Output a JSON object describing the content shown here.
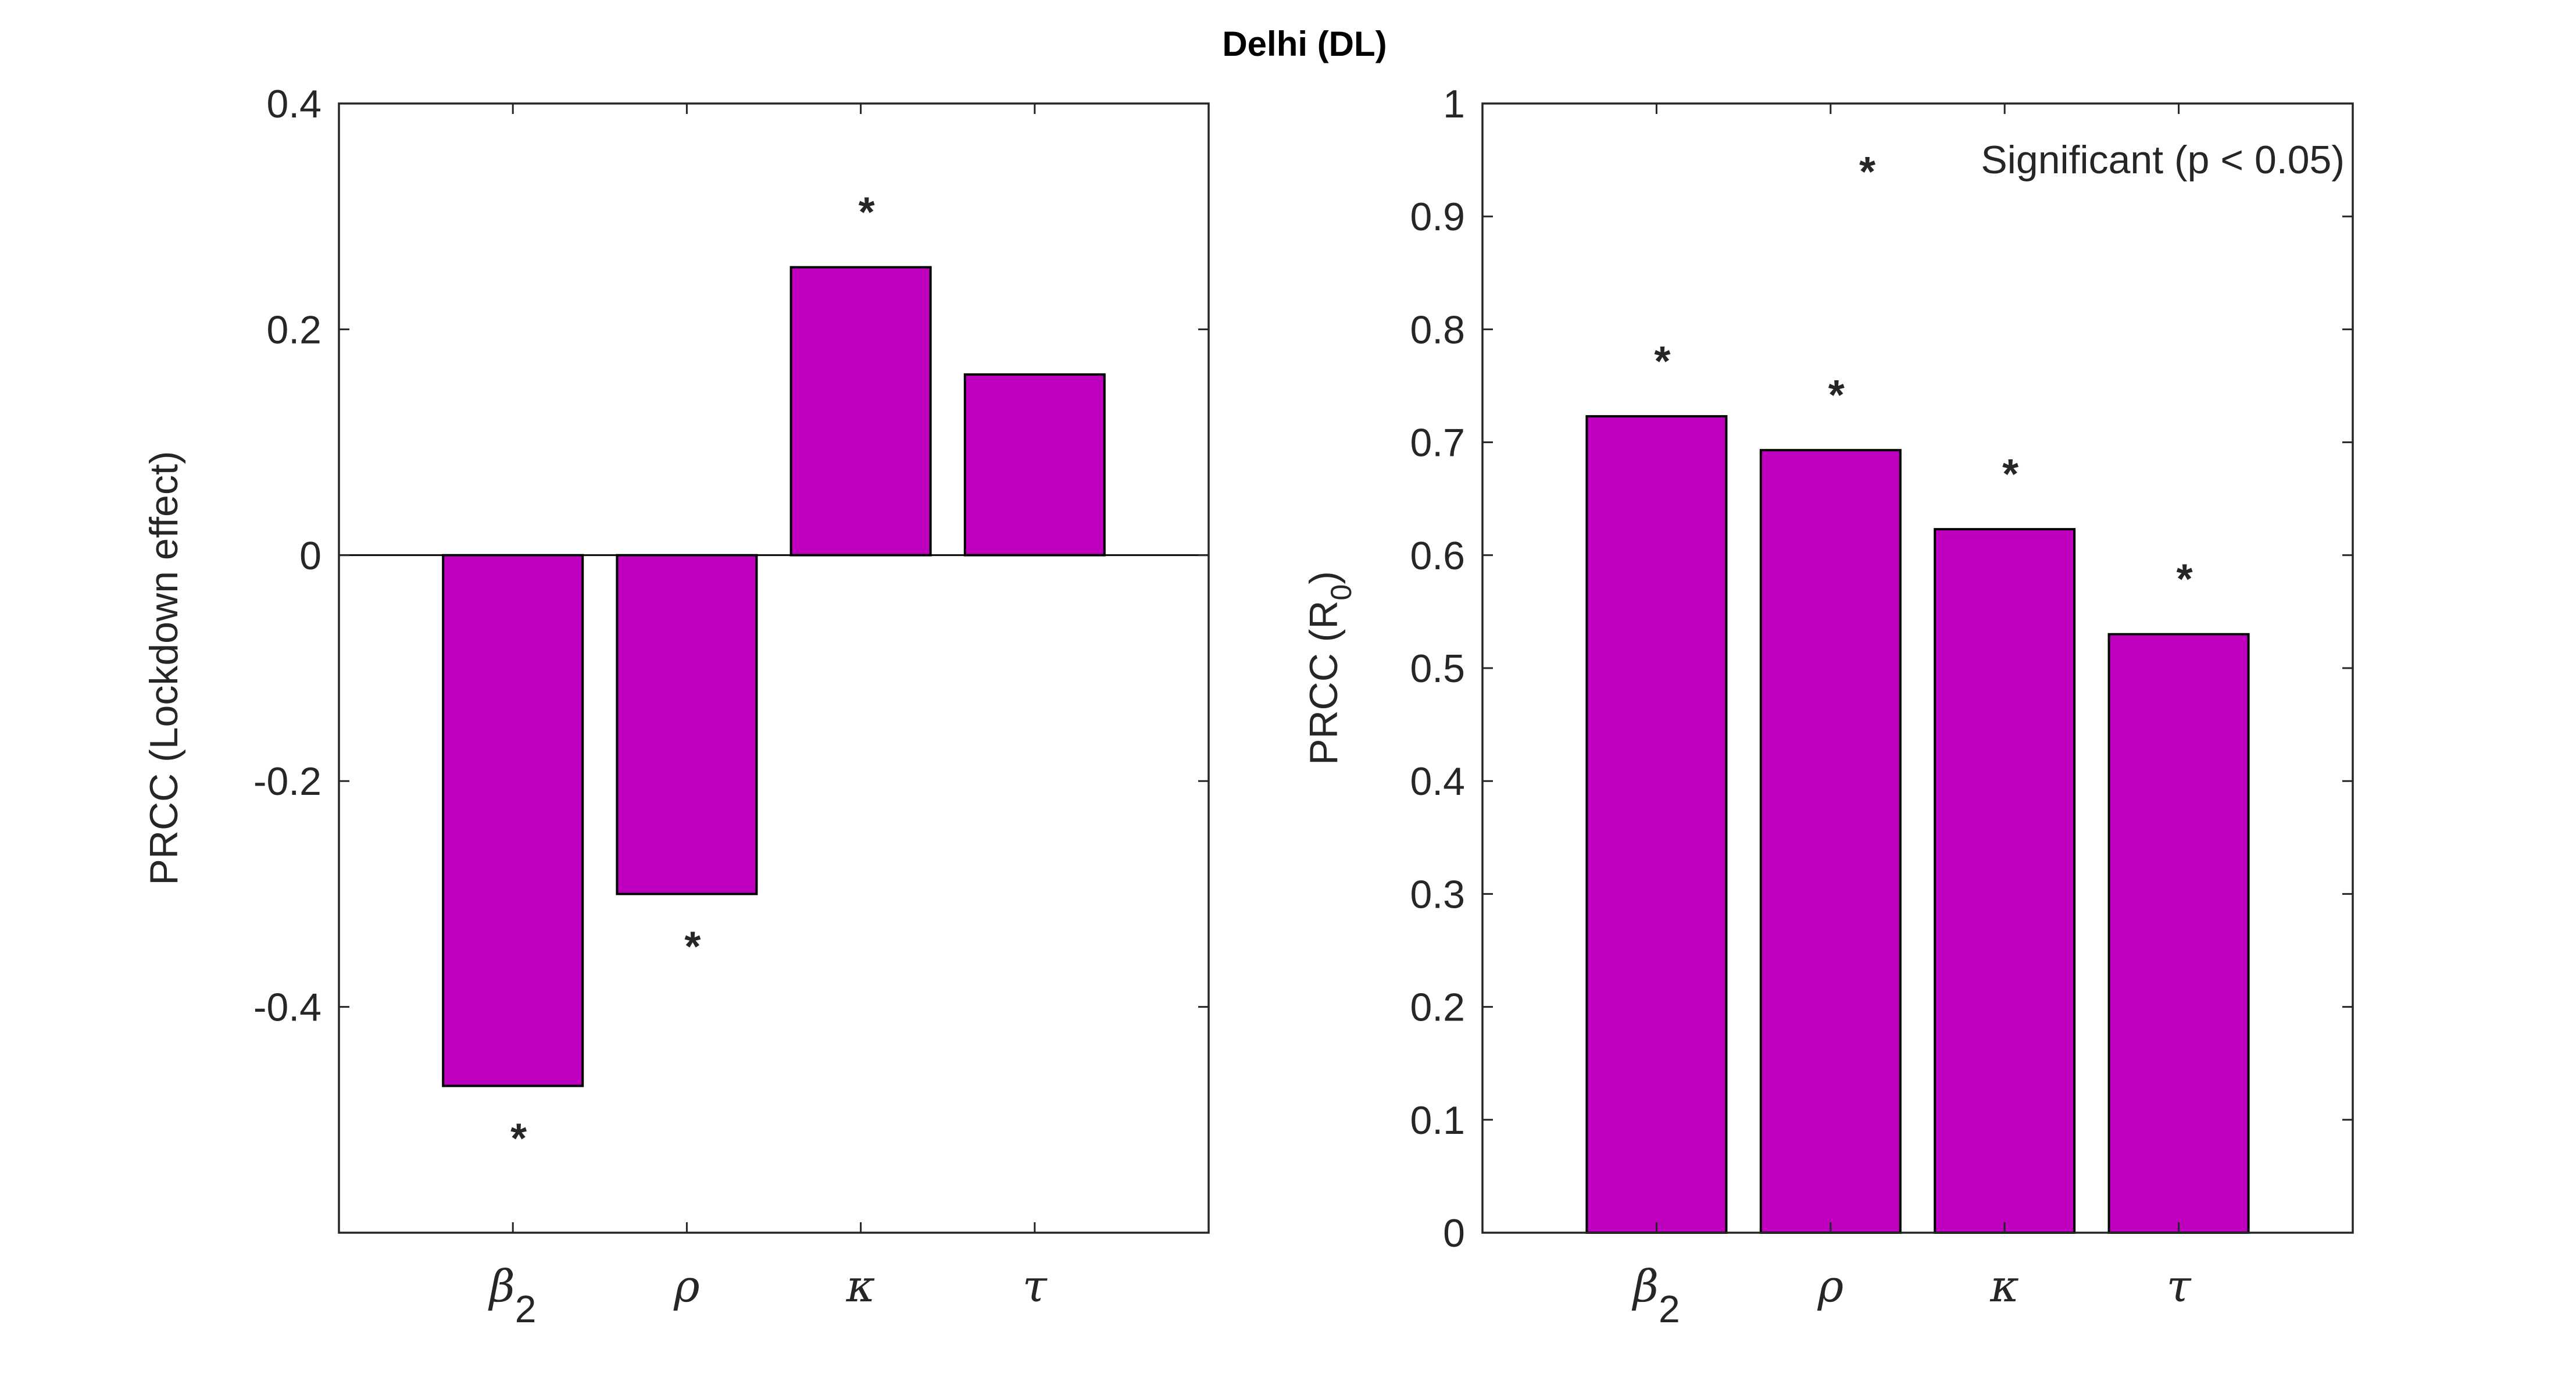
{
  "figure_title": "Delhi (DL)",
  "colors": {
    "bar": "#BF00BF",
    "edge": "#000000",
    "axis": "#262626"
  },
  "chart_data": [
    {
      "type": "bar",
      "title": "",
      "xlabel": "",
      "ylabel": "PRCC (Lockdown effect)",
      "categories": [
        {
          "symbol": "β",
          "subscript": "2"
        },
        {
          "symbol": "ρ",
          "subscript": ""
        },
        {
          "symbol": "κ",
          "subscript": ""
        },
        {
          "symbol": "τ",
          "subscript": ""
        }
      ],
      "values": [
        -0.47,
        -0.3,
        0.255,
        0.16
      ],
      "significant": [
        true,
        true,
        true,
        false
      ],
      "significance_marker": "*",
      "ylim": [
        -0.6,
        0.4
      ],
      "yticks": [
        -0.4,
        -0.2,
        0,
        0.2,
        0.4
      ],
      "ytick_labels": [
        "-0.4",
        "-0.2",
        "0",
        "0.2",
        "0.4"
      ],
      "zero_line": true
    },
    {
      "type": "bar",
      "title": "",
      "xlabel": "",
      "ylabel": {
        "text": "PRCC (R",
        "subscript": "0",
        "suffix": ")"
      },
      "categories": [
        {
          "symbol": "β",
          "subscript": "2"
        },
        {
          "symbol": "ρ",
          "subscript": ""
        },
        {
          "symbol": "κ",
          "subscript": ""
        },
        {
          "symbol": "τ",
          "subscript": ""
        }
      ],
      "values": [
        0.723,
        0.693,
        0.623,
        0.53
      ],
      "significant": [
        true,
        true,
        true,
        true
      ],
      "significance_marker": "*",
      "ylim": [
        0,
        1
      ],
      "yticks": [
        0,
        0.1,
        0.2,
        0.3,
        0.4,
        0.5,
        0.6,
        0.7,
        0.8,
        0.9,
        1
      ],
      "ytick_labels": [
        "0",
        "0.1",
        "0.2",
        "0.3",
        "0.4",
        "0.5",
        "0.6",
        "0.7",
        "0.8",
        "0.9",
        "1"
      ],
      "legend": {
        "marker": "*",
        "label": "Significant (p < 0.05)",
        "location": "top-right"
      }
    }
  ]
}
